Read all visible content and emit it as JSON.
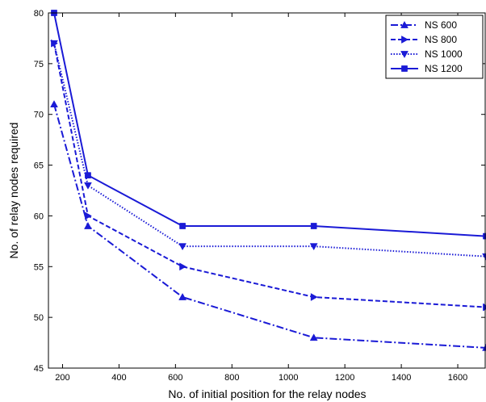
{
  "chart_data": {
    "type": "line",
    "xlabel": "No. of initial position for the relay nodes",
    "ylabel": "No. of relay nodes required",
    "xlim": [
      150,
      1700
    ],
    "ylim": [
      45,
      80
    ],
    "xticks": [
      200,
      400,
      600,
      800,
      1000,
      1200,
      1400,
      1600
    ],
    "yticks": [
      45,
      50,
      55,
      60,
      65,
      70,
      75,
      80
    ],
    "grid": false,
    "legend_position": "top-right",
    "line_color": "#1a1ad6",
    "series": [
      {
        "name": "NS 600",
        "marker": "triangle-up",
        "dash": "dash-dot",
        "x": [
          170,
          290,
          625,
          1090,
          1700
        ],
        "y": [
          71,
          59,
          52,
          48,
          47
        ]
      },
      {
        "name": "NS 800",
        "marker": "triangle-right",
        "dash": "dashed",
        "x": [
          170,
          290,
          625,
          1090,
          1700
        ],
        "y": [
          77,
          60,
          55,
          52,
          51
        ]
      },
      {
        "name": "NS 1000",
        "marker": "triangle-down",
        "dash": "dotted",
        "x": [
          170,
          290,
          625,
          1090,
          1700
        ],
        "y": [
          77,
          63,
          57,
          57,
          56
        ]
      },
      {
        "name": "NS 1200",
        "marker": "square",
        "dash": "solid",
        "x": [
          170,
          290,
          625,
          1090,
          1700
        ],
        "y": [
          80,
          64,
          59,
          59,
          58
        ]
      }
    ]
  }
}
